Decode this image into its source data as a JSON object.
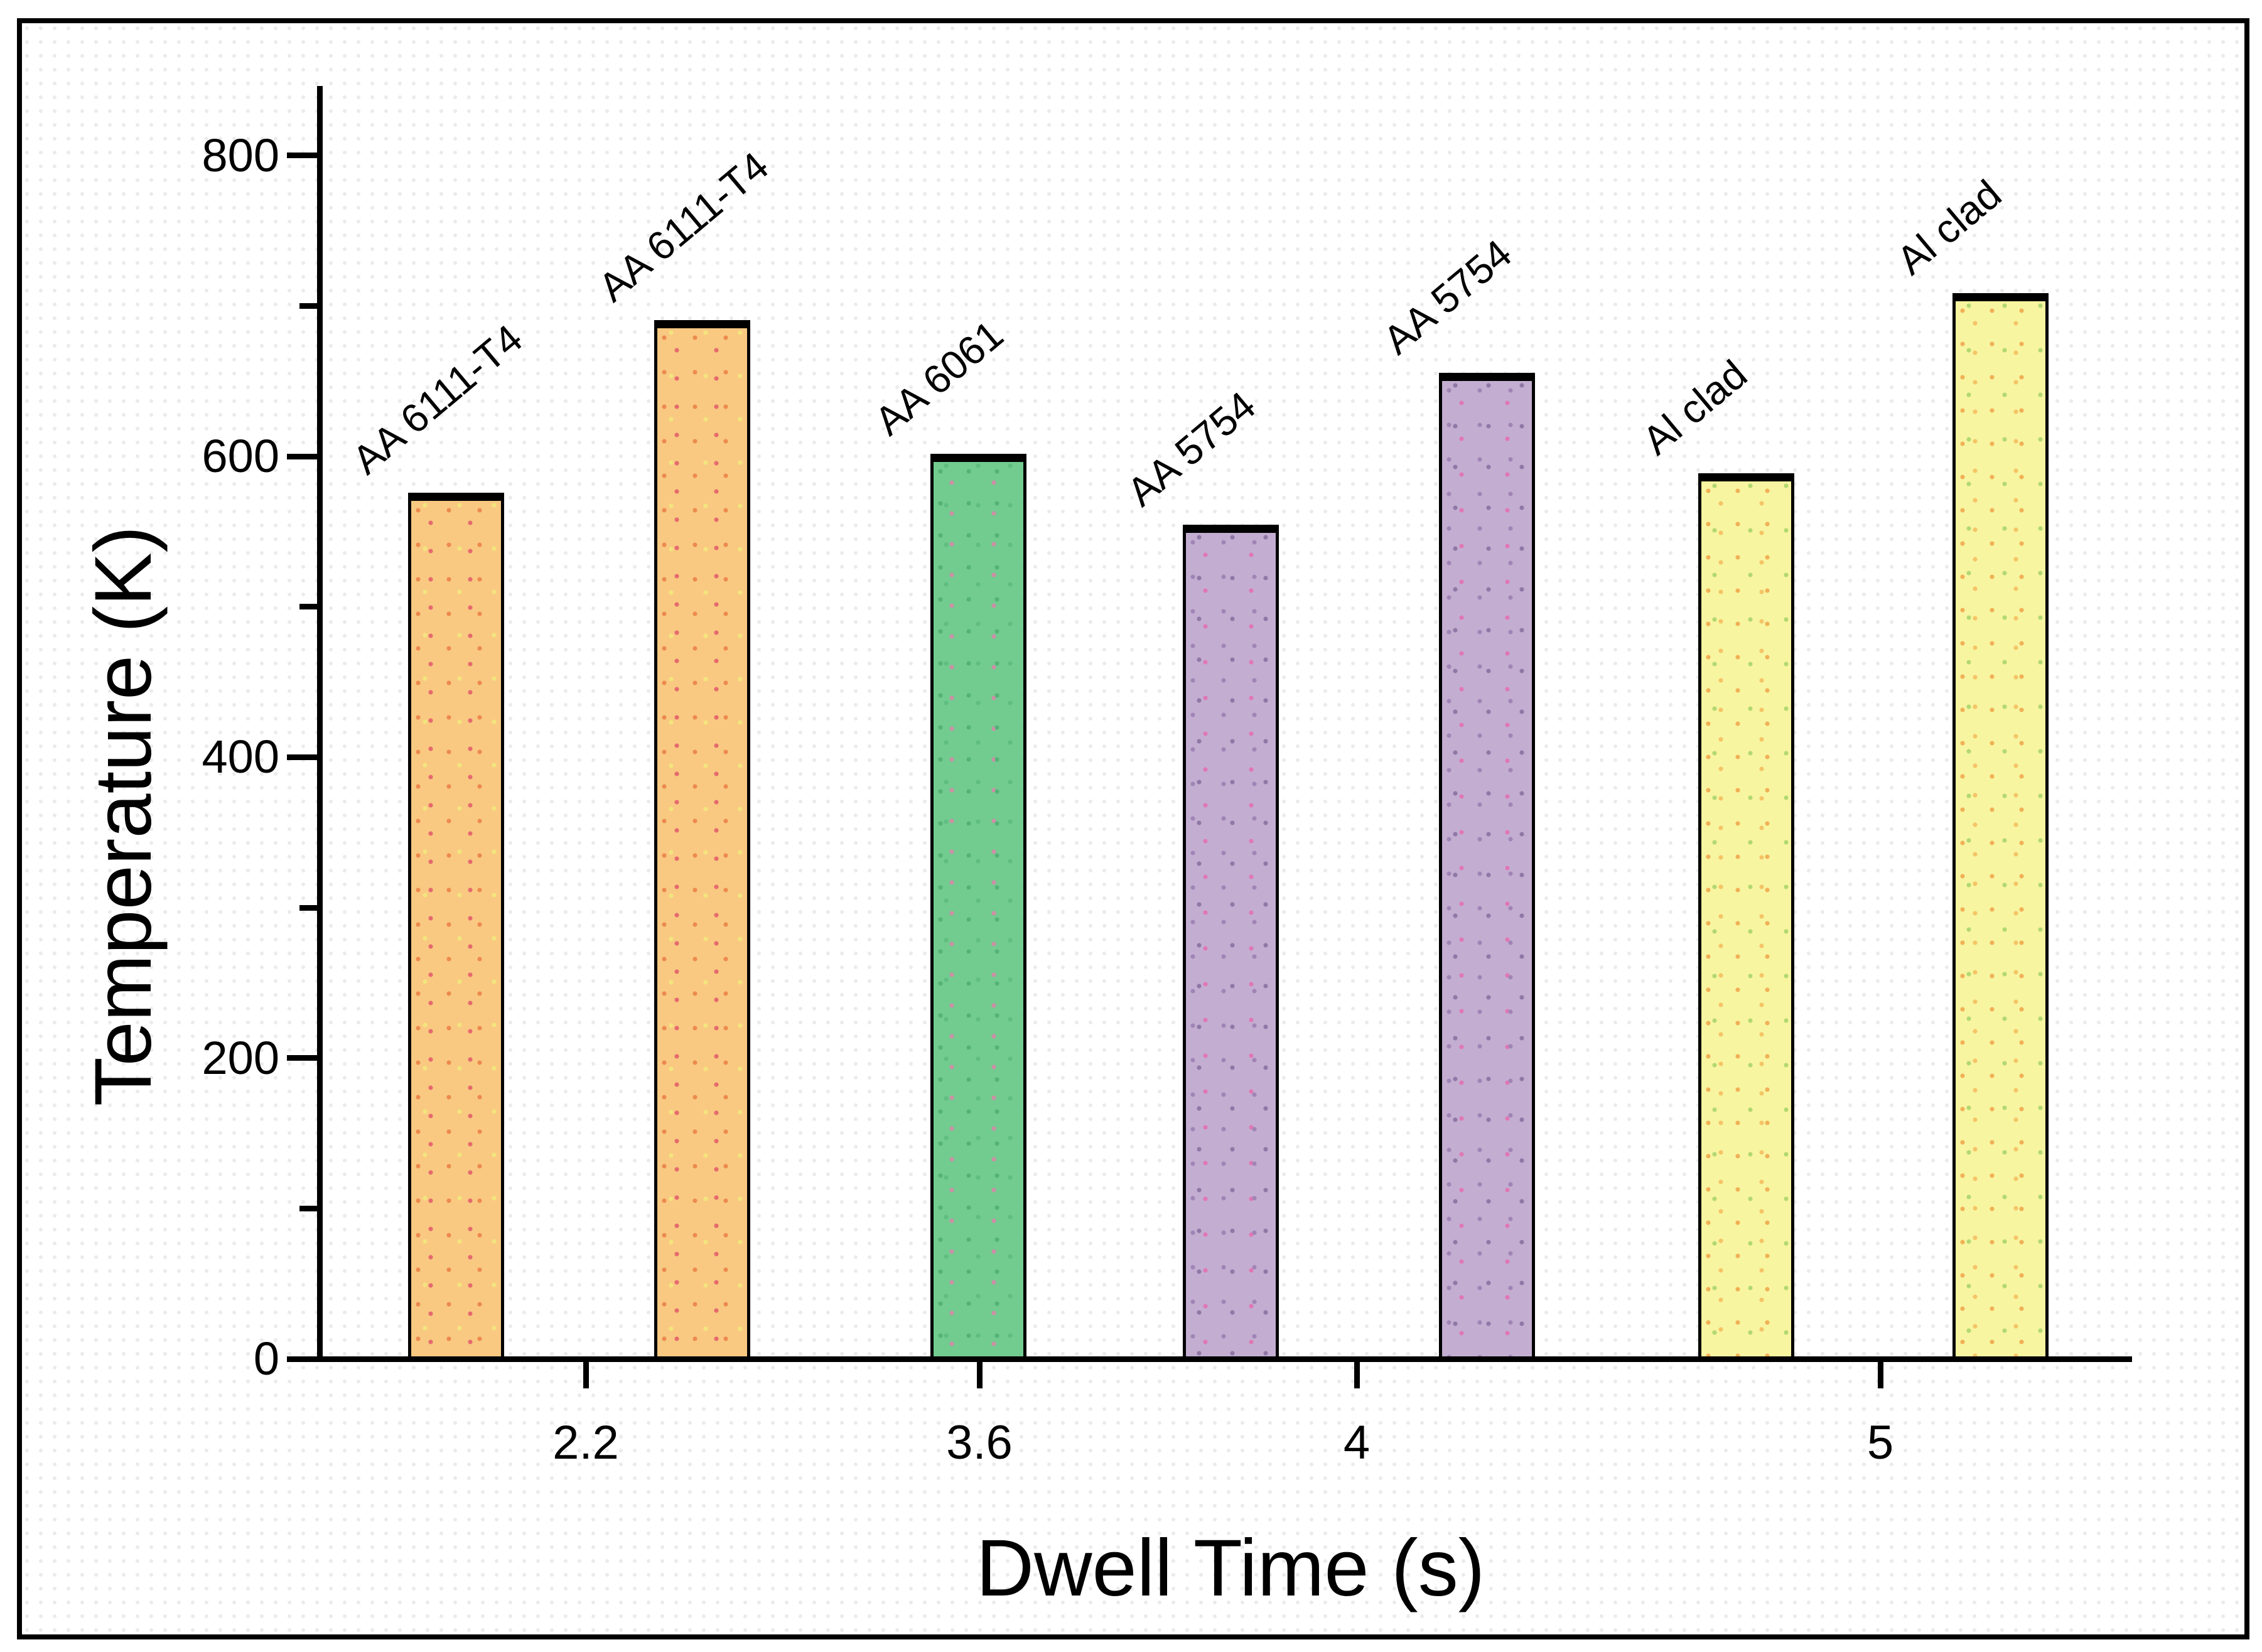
{
  "chart_data": {
    "type": "bar",
    "title": "",
    "xlabel": "Dwell Time (s)",
    "ylabel": "Temperature (K)",
    "ylim": [
      0,
      860
    ],
    "grid": false,
    "legend": "none",
    "y_major_ticks": [
      800,
      600,
      400,
      200,
      0
    ],
    "y_minor_ticks": [
      700,
      500,
      300,
      100
    ],
    "x_ticks": [
      "2.2",
      "3.6",
      "4",
      "5"
    ],
    "categories": [
      "2.2",
      "3.6",
      "4",
      "5"
    ],
    "bars": [
      {
        "group": "2.2",
        "label": "AA 6111-T4",
        "value": 574,
        "color": "orange"
      },
      {
        "group": "2.2",
        "label": "AA 6111-T4",
        "value": 689,
        "color": "orange"
      },
      {
        "group": "3.6",
        "label": "AA 6061",
        "value": 600,
        "color": "green"
      },
      {
        "group": "4",
        "label": "AA 5754",
        "value": 553,
        "color": "purple"
      },
      {
        "group": "4",
        "label": "AA 5754",
        "value": 654,
        "color": "purple"
      },
      {
        "group": "5",
        "label": "Al clad",
        "value": 587,
        "color": "yellow"
      },
      {
        "group": "5",
        "label": "Al clad",
        "value": 707,
        "color": "yellow"
      }
    ],
    "colors": {
      "orange": "#f9c982",
      "green": "#72cb8f",
      "purple": "#c3aed1",
      "yellow": "#f8f5a1",
      "axis": "#000000",
      "frame_border": "#000000",
      "background": "#ffffff"
    }
  }
}
